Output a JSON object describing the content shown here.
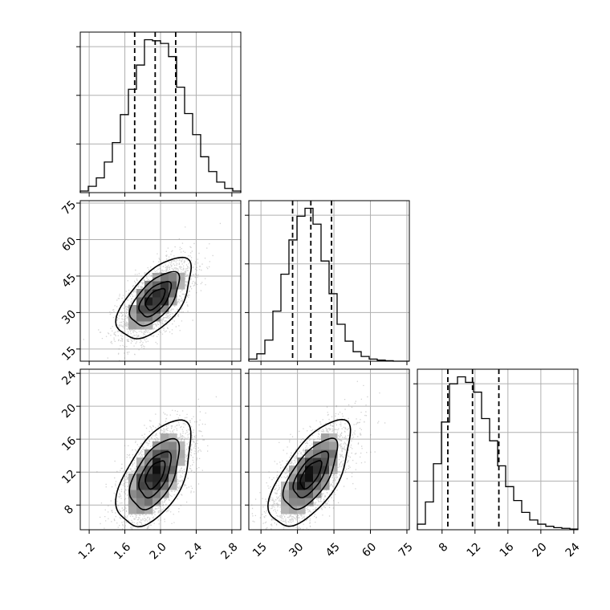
{
  "chart_data": {
    "type": "corner",
    "params": [
      {
        "range": [
          1.1,
          2.9
        ],
        "ticks": [
          "1.2",
          "1.6",
          "2.0",
          "2.4",
          "2.8"
        ],
        "tick_values": [
          1.2,
          1.6,
          2.0,
          2.4,
          2.8
        ],
        "quantiles": [
          1.71,
          1.94,
          2.17
        ],
        "mean": 1.94,
        "sd": 0.2
      },
      {
        "range": [
          10,
          76
        ],
        "ticks": [
          "15",
          "30",
          "45",
          "60",
          "75"
        ],
        "tick_values": [
          15,
          30,
          45,
          60,
          75
        ],
        "quantiles": [
          28.0,
          35.5,
          44.0
        ],
        "mean": 35.5,
        "sd": 8.0
      },
      {
        "range": [
          5,
          24.5
        ],
        "ticks": [
          "8",
          "12",
          "16",
          "20",
          "24"
        ],
        "tick_values": [
          8,
          12,
          16,
          20,
          24
        ],
        "quantiles": [
          8.7,
          11.7,
          14.9
        ],
        "mean": 11.7,
        "sd": 3.1
      }
    ],
    "histograms": [
      {
        "param": 0,
        "bins": 20,
        "counts": [
          3,
          12,
          28,
          58,
          95,
          148,
          196,
          242,
          290,
          288,
          283,
          258,
          200,
          150,
          110,
          68,
          40,
          20,
          8,
          3
        ]
      },
      {
        "param": 1,
        "bins": 20,
        "counts": [
          4,
          14,
          40,
          95,
          165,
          230,
          275,
          290,
          260,
          190,
          128,
          70,
          38,
          18,
          9,
          4,
          2,
          1,
          0,
          0
        ]
      },
      {
        "param": 2,
        "bins": 20,
        "counts": [
          8,
          40,
          95,
          155,
          210,
          220,
          212,
          198,
          160,
          128,
          92,
          62,
          42,
          25,
          14,
          8,
          5,
          3,
          2,
          1
        ]
      }
    ],
    "pairs": [
      {
        "x": 0,
        "y": 1,
        "correlation": 0.6
      },
      {
        "x": 0,
        "y": 2,
        "correlation": 0.55
      },
      {
        "x": 1,
        "y": 2,
        "correlation": 0.65
      }
    ],
    "contour_levels_sigma": [
      0.5,
      1.0,
      1.5,
      2.0
    ],
    "grid": true,
    "colors": {
      "line": "#000000",
      "grid": "#b0b0b0",
      "points": "#7f7f7f",
      "density_dark": "#000000"
    }
  }
}
